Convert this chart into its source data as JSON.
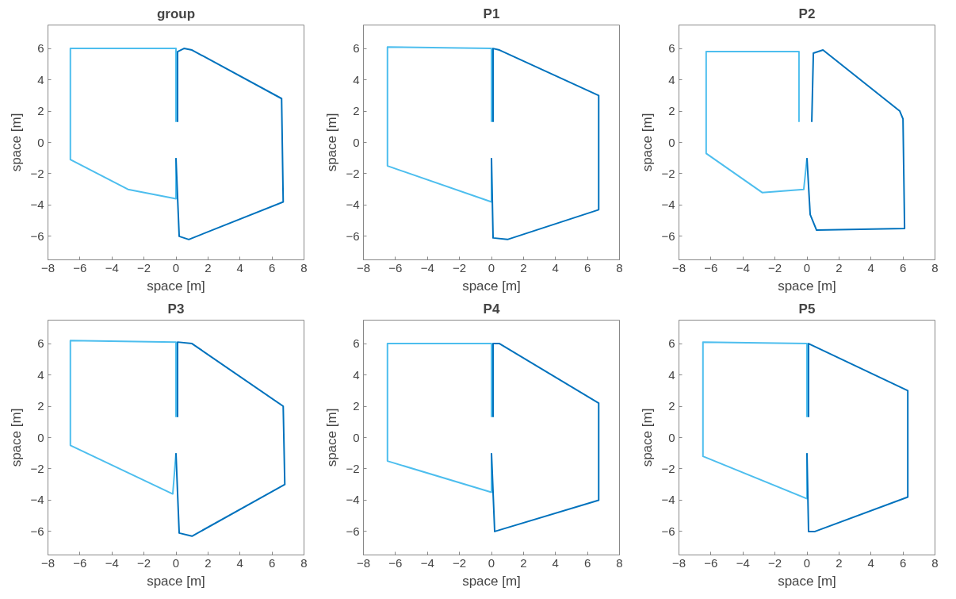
{
  "chart_data": [
    {
      "type": "line",
      "title": "group",
      "xlabel": "space [m]",
      "ylabel": "space [m]",
      "xlim": [
        -8,
        8
      ],
      "ylim": [
        -7.5,
        7.5
      ],
      "xticks": [
        -8,
        -6,
        -4,
        -2,
        0,
        2,
        4,
        6,
        8
      ],
      "yticks": [
        -6,
        -4,
        -2,
        0,
        2,
        4,
        6
      ],
      "grid": false,
      "series": [
        {
          "color": "#4dbeee",
          "x": [
            0,
            0,
            -3,
            -6.6,
            -6.6,
            0,
            0
          ],
          "values": [
            -1,
            -3.6,
            -3,
            -1.1,
            6,
            6,
            1.3
          ]
        },
        {
          "color": "#0072bd",
          "x": [
            0.1,
            0.1,
            0.5,
            1,
            6.6,
            6.7,
            0.8,
            0.2,
            0
          ],
          "values": [
            1.3,
            5.8,
            6,
            5.9,
            2.8,
            -3.8,
            -6.2,
            -6,
            -1
          ]
        }
      ]
    },
    {
      "type": "line",
      "title": "P1",
      "xlabel": "space [m]",
      "ylabel": "space [m]",
      "xlim": [
        -8,
        8
      ],
      "ylim": [
        -7.5,
        7.5
      ],
      "xticks": [
        -8,
        -6,
        -4,
        -2,
        0,
        2,
        4,
        6,
        8
      ],
      "yticks": [
        -6,
        -4,
        -2,
        0,
        2,
        4,
        6
      ],
      "grid": false,
      "series": [
        {
          "color": "#4dbeee",
          "x": [
            0,
            0,
            -6.5,
            -6.5,
            0,
            0
          ],
          "values": [
            -1,
            -3.8,
            -1.5,
            6.1,
            6,
            1.3
          ]
        },
        {
          "color": "#0072bd",
          "x": [
            0.1,
            0.1,
            0.5,
            6.7,
            6.7,
            1,
            0.1,
            0
          ],
          "values": [
            1.3,
            6,
            5.9,
            3,
            -4.3,
            -6.2,
            -6.1,
            -1
          ]
        }
      ]
    },
    {
      "type": "line",
      "title": "P2",
      "xlabel": "space [m]",
      "ylabel": "space [m]",
      "xlim": [
        -8,
        8
      ],
      "ylim": [
        -7.5,
        7.5
      ],
      "xticks": [
        -8,
        -6,
        -4,
        -2,
        0,
        2,
        4,
        6,
        8
      ],
      "yticks": [
        -6,
        -4,
        -2,
        0,
        2,
        4,
        6
      ],
      "grid": false,
      "series": [
        {
          "color": "#4dbeee",
          "x": [
            0,
            -0.2,
            -2.8,
            -6.3,
            -6.3,
            -0.5,
            -0.5
          ],
          "values": [
            -1,
            -3,
            -3.2,
            -0.7,
            5.8,
            5.8,
            1.3
          ]
        },
        {
          "color": "#0072bd",
          "x": [
            0.3,
            0.4,
            1,
            5.8,
            6,
            6.1,
            0.6,
            0.2,
            0
          ],
          "values": [
            1.3,
            5.7,
            5.9,
            2,
            1.5,
            -5.5,
            -5.6,
            -4.6,
            -1
          ]
        }
      ]
    },
    {
      "type": "line",
      "title": "P3",
      "xlabel": "space [m]",
      "ylabel": "space [m]",
      "xlim": [
        -8,
        8
      ],
      "ylim": [
        -7.5,
        7.5
      ],
      "xticks": [
        -8,
        -6,
        -4,
        -2,
        0,
        2,
        4,
        6,
        8
      ],
      "yticks": [
        -6,
        -4,
        -2,
        0,
        2,
        4,
        6
      ],
      "grid": false,
      "series": [
        {
          "color": "#4dbeee",
          "x": [
            0,
            -0.2,
            -6.6,
            -6.6,
            0,
            0
          ],
          "values": [
            -1,
            -3.6,
            -0.5,
            6.2,
            6.1,
            1.3
          ]
        },
        {
          "color": "#0072bd",
          "x": [
            0.1,
            0.1,
            1,
            6.7,
            6.8,
            1,
            0.2,
            0
          ],
          "values": [
            1.3,
            6.1,
            6,
            2,
            -3,
            -6.3,
            -6.1,
            -1
          ]
        }
      ]
    },
    {
      "type": "line",
      "title": "P4",
      "xlabel": "space [m]",
      "ylabel": "space [m]",
      "xlim": [
        -8,
        8
      ],
      "ylim": [
        -7.5,
        7.5
      ],
      "xticks": [
        -8,
        -6,
        -4,
        -2,
        0,
        2,
        4,
        6,
        8
      ],
      "yticks": [
        -6,
        -4,
        -2,
        0,
        2,
        4,
        6
      ],
      "grid": false,
      "series": [
        {
          "color": "#4dbeee",
          "x": [
            0,
            0,
            -6.5,
            -6.5,
            0,
            0
          ],
          "values": [
            -1,
            -3.5,
            -1.5,
            6,
            6,
            1.3
          ]
        },
        {
          "color": "#0072bd",
          "x": [
            0.1,
            0.1,
            0.5,
            6.7,
            6.7,
            0.2,
            0
          ],
          "values": [
            1.3,
            6,
            6,
            2.2,
            -4,
            -6,
            -1
          ]
        }
      ]
    },
    {
      "type": "line",
      "title": "P5",
      "xlabel": "space [m]",
      "ylabel": "space [m]",
      "xlim": [
        -8,
        8
      ],
      "ylim": [
        -7.5,
        7.5
      ],
      "xticks": [
        -8,
        -6,
        -4,
        -2,
        0,
        2,
        4,
        6,
        8
      ],
      "yticks": [
        -6,
        -4,
        -2,
        0,
        2,
        4,
        6
      ],
      "grid": false,
      "series": [
        {
          "color": "#4dbeee",
          "x": [
            0,
            0,
            -6.5,
            -6.5,
            0,
            0
          ],
          "values": [
            -1,
            -3.9,
            -1.2,
            6.1,
            6,
            1.3
          ]
        },
        {
          "color": "#0072bd",
          "x": [
            0.1,
            0.1,
            6.3,
            6.3,
            0.5,
            0.1,
            0
          ],
          "values": [
            1.3,
            6,
            3,
            -3.8,
            -6,
            -6,
            -1
          ]
        }
      ]
    }
  ]
}
